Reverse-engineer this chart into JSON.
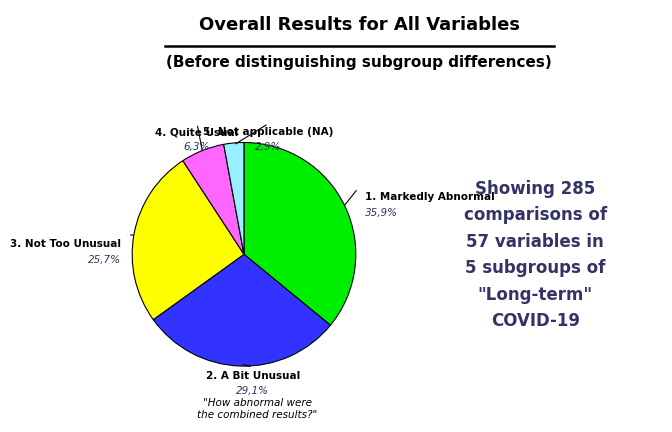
{
  "title_line1": "Overall Results for All Variables",
  "title_line2": "(Before distinguishing subgroup differences)",
  "slices": [
    35.9,
    29.1,
    25.7,
    6.3,
    2.9
  ],
  "labels": [
    "1. Markedly Abnormal",
    "2. A Bit Unusual",
    "3. Not Too Unusual",
    "4. Quite Usual",
    "5. Not applicable (NA)"
  ],
  "pct_labels": [
    "35,9%",
    "29,1%",
    "25,7%",
    "6,3%",
    "2,9%"
  ],
  "colors": [
    "#00ee00",
    "#3333ff",
    "#ffff00",
    "#ff66ff",
    "#99eeff"
  ],
  "explode": [
    0,
    0,
    0,
    0,
    0
  ],
  "startangle": 90,
  "annotation_text": "Showing 285\ncomparisons of\n57 variables in\n5 subgroups of\n\"Long-term\"\nCOVID-19",
  "subtitle_pie": "\"How abnormal were\nthe combined results?\"",
  "background_color": "#ffffff",
  "text_color": "#333366",
  "title_color": "#000000"
}
